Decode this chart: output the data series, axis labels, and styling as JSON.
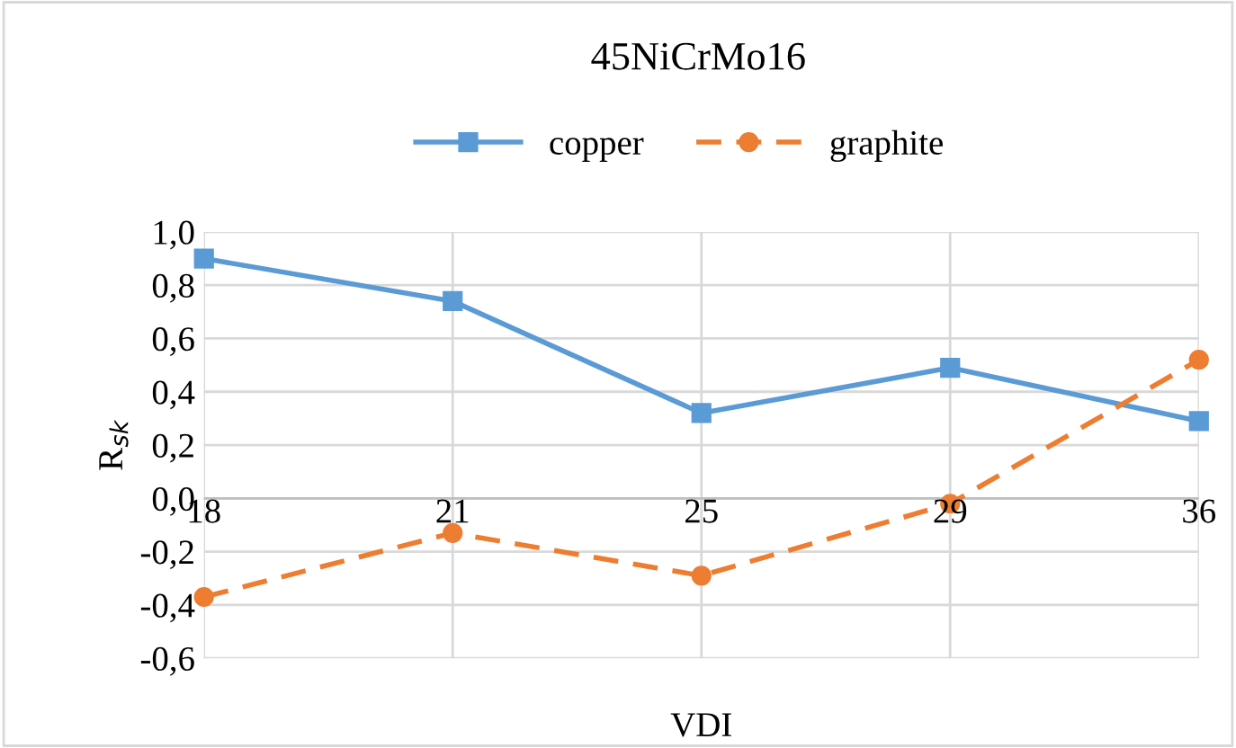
{
  "chart_data": {
    "type": "line",
    "title": "45NiCrMo16",
    "xlabel": "VDI",
    "ylabel": "R$_{sk}$",
    "categories": [
      "18",
      "21",
      "25",
      "29",
      "36"
    ],
    "series": [
      {
        "name": "copper",
        "color": "#5b9bd5",
        "values": [
          0.9,
          0.74,
          0.32,
          0.49,
          0.29
        ],
        "marker": "square",
        "line_style": "solid"
      },
      {
        "name": "graphite",
        "color": "#ed7d31",
        "values": [
          -0.37,
          -0.13,
          -0.29,
          -0.02,
          0.52
        ],
        "marker": "circle",
        "line_style": "dashed"
      }
    ],
    "ylim": [
      -0.6,
      1.0
    ],
    "yticks": [
      {
        "value": -0.6,
        "label": "-0,6"
      },
      {
        "value": -0.4,
        "label": "-0,4"
      },
      {
        "value": -0.2,
        "label": "-0,2"
      },
      {
        "value": 0.0,
        "label": "0,0"
      },
      {
        "value": 0.2,
        "label": "0,2"
      },
      {
        "value": 0.4,
        "label": "0,4"
      },
      {
        "value": 0.6,
        "label": "0,6"
      },
      {
        "value": 0.8,
        "label": "0,8"
      },
      {
        "value": 1.0,
        "label": "1,0"
      }
    ],
    "grid": true,
    "legend": "top"
  }
}
